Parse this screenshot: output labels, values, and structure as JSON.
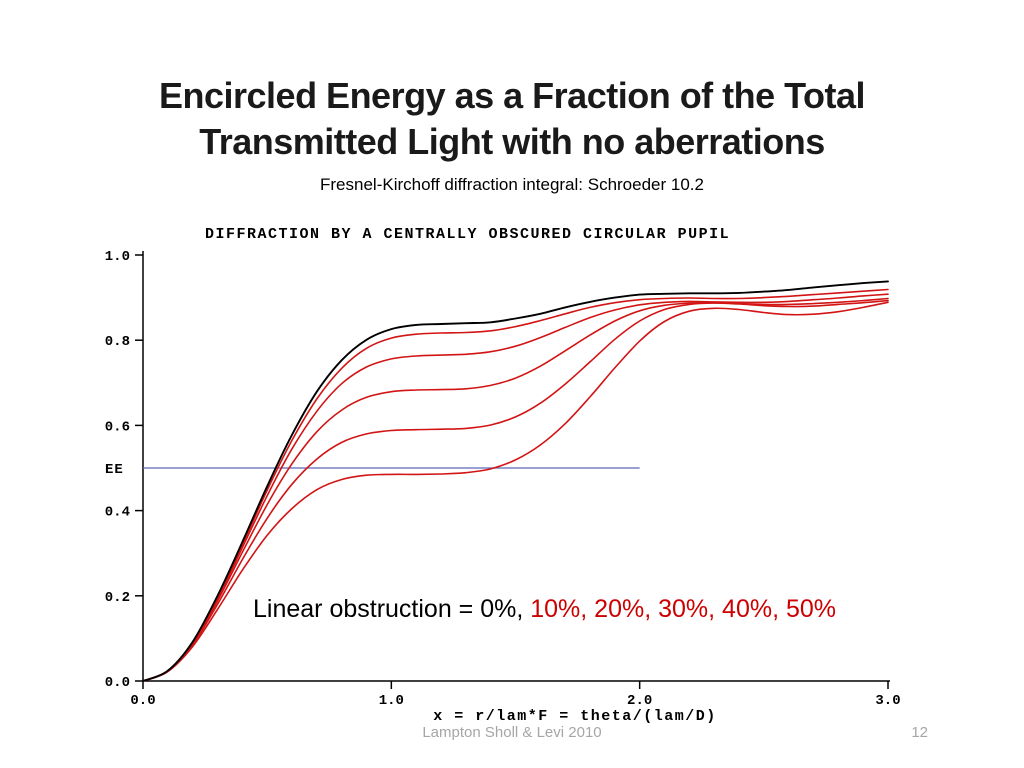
{
  "slide": {
    "title": {
      "line1": "Encircled Energy as a Fraction of the Total",
      "line2": "Transmitted Light with no aberrations"
    },
    "subtitle": "Fresnel-Kirchoff diffraction integral: Schroeder 10.2",
    "annotation": {
      "black_text": "Linear obstruction = 0%, ",
      "red_text": "10%, 20%, 30%, 40%, 50%",
      "red_color": "#cc0000"
    },
    "footer": {
      "credit": "Lampton Sholl & Levi 2010",
      "page_number": "12"
    }
  },
  "chart_data": {
    "type": "line",
    "title": "DIFFRACTION BY A CENTRALLY OBSCURED CIRCULAR PUPIL",
    "xlabel": "x = r/lam*F = theta/(lam/D)",
    "ylabel": "EE",
    "xlim": [
      0,
      3
    ],
    "ylim": [
      0,
      1
    ],
    "x_ticks": [
      0,
      1,
      2,
      3
    ],
    "y_ticks": [
      0,
      0.2,
      0.4,
      0.6,
      0.8,
      1.0
    ],
    "grid": false,
    "legend_position": "none",
    "reference_line": {
      "y": 0.5,
      "x_from": 0,
      "x_to": 2.0,
      "color": "#5968b4"
    },
    "x": [
      0,
      0.1,
      0.2,
      0.3,
      0.4,
      0.5,
      0.6,
      0.7,
      0.8,
      0.9,
      1.0,
      1.1,
      1.2,
      1.3,
      1.4,
      1.5,
      1.6,
      1.7,
      1.8,
      1.9,
      2.0,
      2.1,
      2.2,
      2.3,
      2.4,
      2.5,
      2.6,
      2.7,
      2.8,
      2.9,
      3.0
    ],
    "series": [
      {
        "name": "0% obstruction",
        "color": "#000000",
        "width": 1.9,
        "y": [
          0,
          0.024,
          0.092,
          0.2,
          0.326,
          0.457,
          0.578,
          0.679,
          0.753,
          0.801,
          0.826,
          0.836,
          0.838,
          0.84,
          0.842,
          0.851,
          0.862,
          0.877,
          0.89,
          0.9,
          0.907,
          0.909,
          0.91,
          0.91,
          0.911,
          0.914,
          0.918,
          0.924,
          0.929,
          0.934,
          0.938
        ]
      },
      {
        "name": "10% obstruction",
        "color": "#d21414",
        "width": 1.6,
        "y": [
          0,
          0.024,
          0.091,
          0.197,
          0.32,
          0.448,
          0.565,
          0.662,
          0.734,
          0.781,
          0.805,
          0.814,
          0.817,
          0.818,
          0.822,
          0.832,
          0.846,
          0.862,
          0.877,
          0.888,
          0.895,
          0.898,
          0.899,
          0.898,
          0.898,
          0.9,
          0.903,
          0.907,
          0.911,
          0.915,
          0.919
        ]
      },
      {
        "name": "20% obstruction",
        "color": "#d21414",
        "width": 1.6,
        "y": [
          0,
          0.024,
          0.09,
          0.193,
          0.313,
          0.435,
          0.545,
          0.633,
          0.698,
          0.737,
          0.756,
          0.763,
          0.765,
          0.767,
          0.773,
          0.786,
          0.806,
          0.83,
          0.853,
          0.871,
          0.883,
          0.889,
          0.891,
          0.89,
          0.889,
          0.889,
          0.891,
          0.895,
          0.899,
          0.904,
          0.908
        ]
      },
      {
        "name": "30% obstruction",
        "color": "#d21414",
        "width": 1.6,
        "y": [
          0,
          0.023,
          0.088,
          0.188,
          0.302,
          0.414,
          0.51,
          0.585,
          0.636,
          0.666,
          0.679,
          0.683,
          0.684,
          0.686,
          0.694,
          0.711,
          0.739,
          0.775,
          0.812,
          0.845,
          0.869,
          0.882,
          0.887,
          0.888,
          0.886,
          0.884,
          0.884,
          0.886,
          0.889,
          0.893,
          0.898
        ]
      },
      {
        "name": "40% obstruction",
        "color": "#d21414",
        "width": 1.6,
        "y": [
          0,
          0.023,
          0.085,
          0.18,
          0.285,
          0.382,
          0.462,
          0.521,
          0.56,
          0.58,
          0.588,
          0.59,
          0.591,
          0.593,
          0.601,
          0.62,
          0.652,
          0.697,
          0.749,
          0.802,
          0.845,
          0.872,
          0.884,
          0.887,
          0.885,
          0.881,
          0.879,
          0.88,
          0.884,
          0.888,
          0.893
        ]
      },
      {
        "name": "50% obstruction",
        "color": "#d21414",
        "width": 1.6,
        "y": [
          0,
          0.022,
          0.081,
          0.168,
          0.26,
          0.342,
          0.405,
          0.449,
          0.473,
          0.483,
          0.485,
          0.485,
          0.486,
          0.489,
          0.498,
          0.519,
          0.554,
          0.604,
          0.667,
          0.735,
          0.798,
          0.844,
          0.868,
          0.875,
          0.872,
          0.865,
          0.86,
          0.861,
          0.867,
          0.877,
          0.889
        ]
      }
    ]
  }
}
